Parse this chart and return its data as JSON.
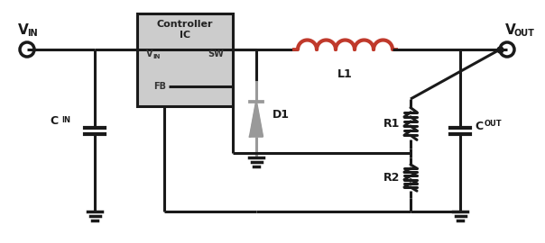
{
  "bg_color": "#ffffff",
  "line_color": "#1a1a1a",
  "line_width": 2.2,
  "inductor_color": "#c0392b",
  "diode_color": "#999999",
  "ic_box_color": "#cccccc",
  "ic_box_edge": "#1a1a1a",
  "vin_label": "V",
  "vin_sub": "IN",
  "vout_label": "V",
  "vout_sub": "OUT",
  "cin_label": "C",
  "cin_sub": "IN",
  "cout_label": "C",
  "cout_sub": "OUT",
  "l1_label": "L1",
  "d1_label": "D1",
  "r1_label": "R1",
  "r2_label": "R2",
  "ic_title1": "Controller",
  "ic_title2": "IC",
  "ic_vin_label": "V",
  "ic_vin_sub": "IN",
  "ic_sw": "SW",
  "ic_fb": "FB"
}
